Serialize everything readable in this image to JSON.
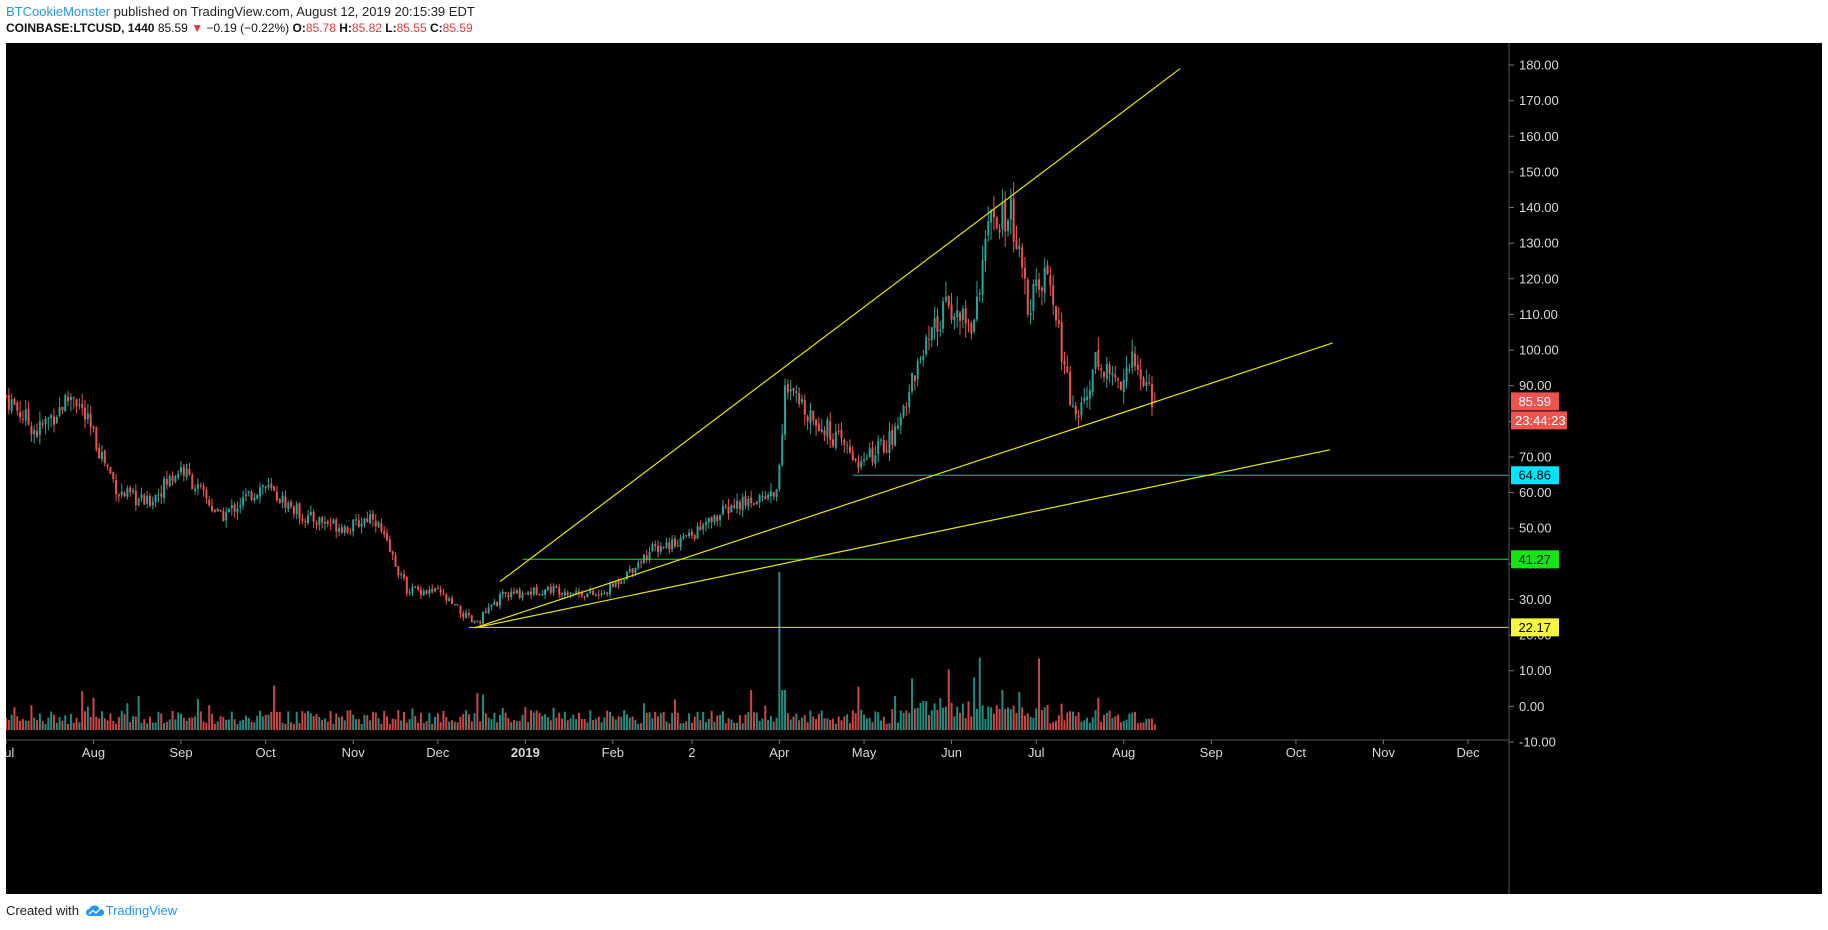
{
  "header": {
    "author": "BTCookieMonster",
    "published_text": " published on TradingView.com, August 12, 2019 20:15:39 EDT",
    "symbol": "COINBASE:LTCUSD, 1440",
    "last": "85.59",
    "change": "−0.19 (−0.22%)",
    "o_label": "O:",
    "o_val": "85.78",
    "h_label": "H:",
    "h_val": "85.82",
    "l_label": "L:",
    "l_val": "85.55",
    "c_label": "C:",
    "c_val": "85.59",
    "down_arrow": "▼"
  },
  "footer": {
    "created_with": "Created with",
    "brand": "TradingView",
    "logo_icon": "tradingview-cloud-icon"
  },
  "colors": {
    "up": "#26a69a",
    "down": "#ef5350",
    "trendline": "#e6e600",
    "support_cyan": "#1fb5b5",
    "support_green": "#2bd42b",
    "support_yellow": "#e6e600",
    "background": "#000000",
    "axis_text": "#d9d9d9"
  },
  "chart_data": {
    "type": "candlestick",
    "symbol": "COINBASE:LTCUSD",
    "interval": "1440",
    "y_axis": {
      "min": -10,
      "max": 180,
      "ticks": [
        "180.00",
        "170.00",
        "160.00",
        "150.00",
        "140.00",
        "130.00",
        "120.00",
        "110.00",
        "100.00",
        "90.00",
        "80.00",
        "70.00",
        "60.00",
        "50.00",
        "40.00",
        "30.00",
        "20.00",
        "10.00",
        "0.00",
        "-10.00"
      ]
    },
    "x_axis": {
      "ticks": [
        "Jul",
        "Aug",
        "Sep",
        "Oct",
        "Nov",
        "Dec",
        "2019",
        "Feb",
        "2",
        "Apr",
        "May",
        "Jun",
        "Jul",
        "Aug",
        "Sep",
        "Oct",
        "Nov",
        "Dec"
      ]
    },
    "price_path": [
      {
        "date": "2018-07-01",
        "close": 87
      },
      {
        "date": "2018-07-12",
        "close": 77
      },
      {
        "date": "2018-07-25",
        "close": 88
      },
      {
        "date": "2018-08-10",
        "close": 60
      },
      {
        "date": "2018-08-20",
        "close": 57
      },
      {
        "date": "2018-09-01",
        "close": 67
      },
      {
        "date": "2018-09-15",
        "close": 53
      },
      {
        "date": "2018-09-30",
        "close": 62
      },
      {
        "date": "2018-10-15",
        "close": 53
      },
      {
        "date": "2018-10-31",
        "close": 50
      },
      {
        "date": "2018-11-08",
        "close": 54
      },
      {
        "date": "2018-11-20",
        "close": 33
      },
      {
        "date": "2018-12-01",
        "close": 32
      },
      {
        "date": "2018-12-14",
        "close": 23
      },
      {
        "date": "2018-12-24",
        "close": 31
      },
      {
        "date": "2019-01-10",
        "close": 33
      },
      {
        "date": "2019-01-28",
        "close": 31
      },
      {
        "date": "2019-02-15",
        "close": 44
      },
      {
        "date": "2019-03-01",
        "close": 48
      },
      {
        "date": "2019-03-15",
        "close": 56
      },
      {
        "date": "2019-03-31",
        "close": 60
      },
      {
        "date": "2019-04-03",
        "close": 88
      },
      {
        "date": "2019-04-10",
        "close": 84
      },
      {
        "date": "2019-04-20",
        "close": 76
      },
      {
        "date": "2019-04-30",
        "close": 68
      },
      {
        "date": "2019-05-12",
        "close": 76
      },
      {
        "date": "2019-05-18",
        "close": 92
      },
      {
        "date": "2019-05-31",
        "close": 113
      },
      {
        "date": "2019-06-08",
        "close": 106
      },
      {
        "date": "2019-06-14",
        "close": 134
      },
      {
        "date": "2019-06-22",
        "close": 138
      },
      {
        "date": "2019-06-28",
        "close": 112
      },
      {
        "date": "2019-07-05",
        "close": 121
      },
      {
        "date": "2019-07-15",
        "close": 79
      },
      {
        "date": "2019-07-22",
        "close": 97
      },
      {
        "date": "2019-07-30",
        "close": 91
      },
      {
        "date": "2019-08-04",
        "close": 97
      },
      {
        "date": "2019-08-12",
        "close": 85.59
      }
    ],
    "horizontal_levels": [
      {
        "price": 64.86,
        "label": "64.86",
        "color": "#1fb5b5",
        "label_bg": "#00e5ff"
      },
      {
        "price": 41.27,
        "label": "41.27",
        "color": "#2bd42b",
        "label_bg": "#13e613"
      },
      {
        "price": 22.17,
        "label": "22.17",
        "color": "#e6e600",
        "label_bg": "#f6f63c"
      }
    ],
    "trendlines": [
      {
        "from": {
          "date": "2018-12-23",
          "price": 35
        },
        "to": {
          "date": "2019-08-21",
          "price": 179
        }
      },
      {
        "from": {
          "date": "2018-12-14",
          "price": 22
        },
        "to": {
          "date": "2019-10-14",
          "price": 102
        }
      },
      {
        "from": {
          "date": "2018-12-14",
          "price": 22
        },
        "to": {
          "date": "2019-10-13",
          "price": 72
        }
      }
    ],
    "last_price": {
      "value": 85.59,
      "label": "85.59",
      "countdown": "23:44:23"
    }
  }
}
